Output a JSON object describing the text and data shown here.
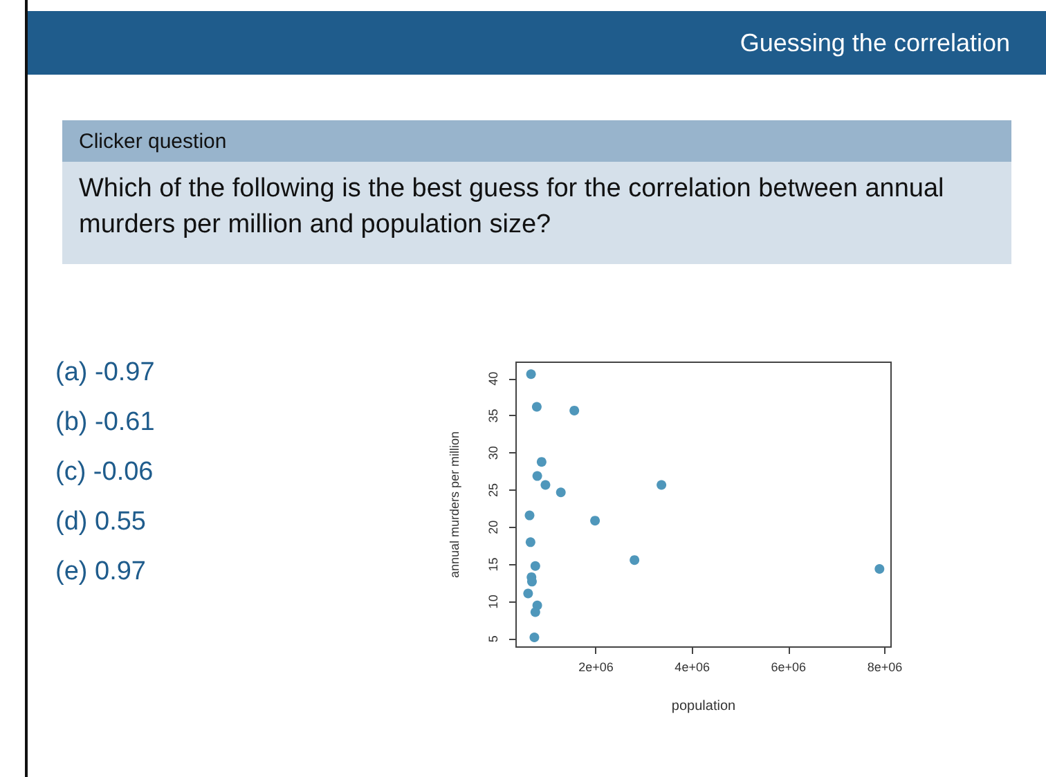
{
  "chart_data": {
    "type": "scatter",
    "title": "Guessing the correlation",
    "subtitle": "Clicker question",
    "annotations": [
      "Which of the following is the best guess for the correlation between annual murders per million and population size?",
      "(a) -0.97",
      "(b) -0.61",
      "(c) -0.06",
      "(d) 0.55",
      "(e) 0.97"
    ],
    "xlabel": "population",
    "ylabel": "annual murders per million",
    "color": "#4f97bb",
    "marker": "circle",
    "x": [
      650000,
      770000,
      1550000,
      870000,
      780000,
      950000,
      1270000,
      3360000,
      620000,
      1980000,
      640000,
      2800000,
      7890000,
      740000,
      660000,
      670000,
      590000,
      780000,
      740000,
      720000
    ],
    "values": [
      40.6,
      36.2,
      35.7,
      28.8,
      26.9,
      25.7,
      24.7,
      25.7,
      21.6,
      20.9,
      18.0,
      15.6,
      14.4,
      14.8,
      13.3,
      12.7,
      11.1,
      9.5,
      8.6,
      5.2
    ],
    "xlim": [
      340000,
      8130000
    ],
    "ylim": [
      3.9,
      42.2
    ],
    "xticks": [
      {
        "value": 2000000,
        "label": "2e+06"
      },
      {
        "value": 4000000,
        "label": "4e+06"
      },
      {
        "value": 6000000,
        "label": "6e+06"
      },
      {
        "value": 8000000,
        "label": "8e+06"
      }
    ],
    "yticks": [
      5,
      10,
      15,
      20,
      25,
      30,
      35,
      40
    ]
  }
}
